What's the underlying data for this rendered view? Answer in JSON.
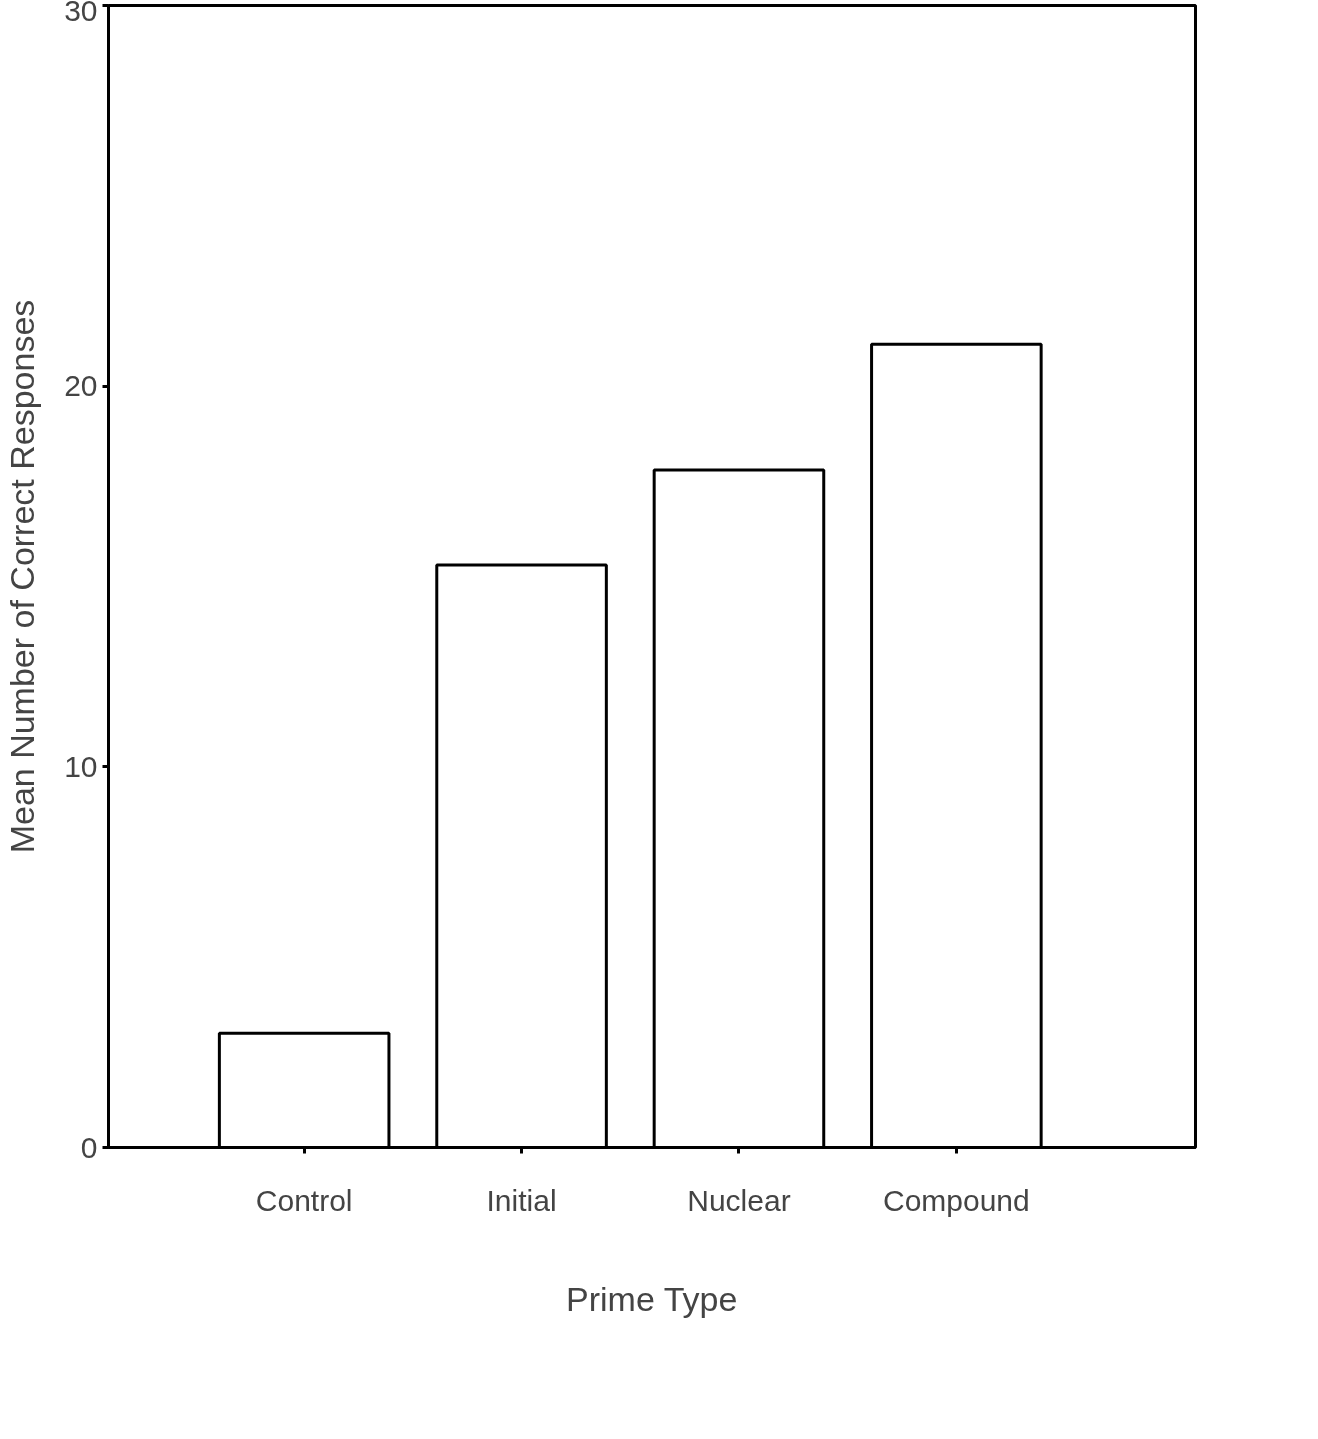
{
  "chart_data": {
    "type": "bar",
    "xlabel": "Prime Type",
    "ylabel": "Mean Number of Correct Responses",
    "categories": [
      "Control",
      "Initial",
      "Nuclear",
      "Compound"
    ],
    "values": [
      3.0,
      15.3,
      17.8,
      21.1
    ],
    "color": "#ffffff",
    "ylim": [
      0,
      30
    ],
    "yticks": [
      0,
      10,
      20,
      30
    ],
    "grid": false
  }
}
